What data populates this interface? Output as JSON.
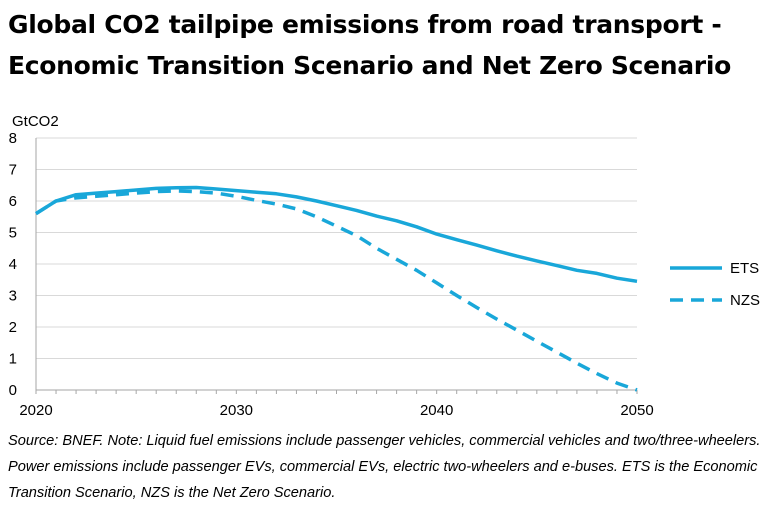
{
  "title_line1": "Global CO2 tailpipe emissions from road transport -",
  "title_line2": "Economic Transition Scenario and Net Zero Scenario",
  "source_note": "Source: BNEF. Note: Liquid fuel emissions include passenger vehicles, commercial vehicles and two/three-wheelers. Power emissions include passenger EVs, commercial EVs, electric two-wheelers and e-buses. ETS is the Economic Transition Scenario, NZS is the Net Zero Scenario.",
  "colors": {
    "series": "#19A7D9",
    "grid": "#D9D9D9",
    "axis": "#A6A6A6"
  },
  "chart_data": {
    "type": "line",
    "title": "Global CO2 tailpipe emissions from road transport - Economic Transition Scenario and Net Zero Scenario",
    "xlabel": "",
    "ylabel": "GtCO2",
    "xlim": [
      2020,
      2050
    ],
    "ylim": [
      0,
      8
    ],
    "xticks": [
      2020,
      2030,
      2040,
      2050
    ],
    "yticks": [
      0,
      1,
      2,
      3,
      4,
      5,
      6,
      7,
      8
    ],
    "grid": "horizontal",
    "legend_position": "right",
    "series": [
      {
        "name": "ETS",
        "style": "solid",
        "x": [
          2020,
          2021,
          2022,
          2023,
          2024,
          2025,
          2026,
          2027,
          2028,
          2029,
          2030,
          2031,
          2032,
          2033,
          2034,
          2035,
          2036,
          2037,
          2038,
          2039,
          2040,
          2041,
          2042,
          2043,
          2044,
          2045,
          2046,
          2047,
          2048,
          2049,
          2050
        ],
        "values": [
          5.6,
          6.0,
          6.2,
          6.25,
          6.3,
          6.35,
          6.4,
          6.42,
          6.43,
          6.38,
          6.33,
          6.28,
          6.23,
          6.13,
          6.0,
          5.85,
          5.7,
          5.52,
          5.37,
          5.18,
          4.95,
          4.77,
          4.6,
          4.42,
          4.25,
          4.1,
          3.95,
          3.8,
          3.7,
          3.55,
          3.45
        ]
      },
      {
        "name": "NZS",
        "style": "dashed",
        "x": [
          2020,
          2021,
          2022,
          2023,
          2024,
          2025,
          2026,
          2027,
          2028,
          2029,
          2030,
          2031,
          2032,
          2033,
          2034,
          2035,
          2036,
          2037,
          2038,
          2039,
          2040,
          2041,
          2042,
          2043,
          2044,
          2045,
          2046,
          2047,
          2048,
          2049,
          2050
        ],
        "values": [
          5.6,
          6.0,
          6.1,
          6.15,
          6.2,
          6.25,
          6.3,
          6.32,
          6.3,
          6.25,
          6.15,
          6.02,
          5.9,
          5.75,
          5.5,
          5.2,
          4.9,
          4.5,
          4.15,
          3.8,
          3.4,
          3.0,
          2.62,
          2.25,
          1.9,
          1.55,
          1.2,
          0.85,
          0.52,
          0.22,
          0.0
        ]
      }
    ]
  }
}
